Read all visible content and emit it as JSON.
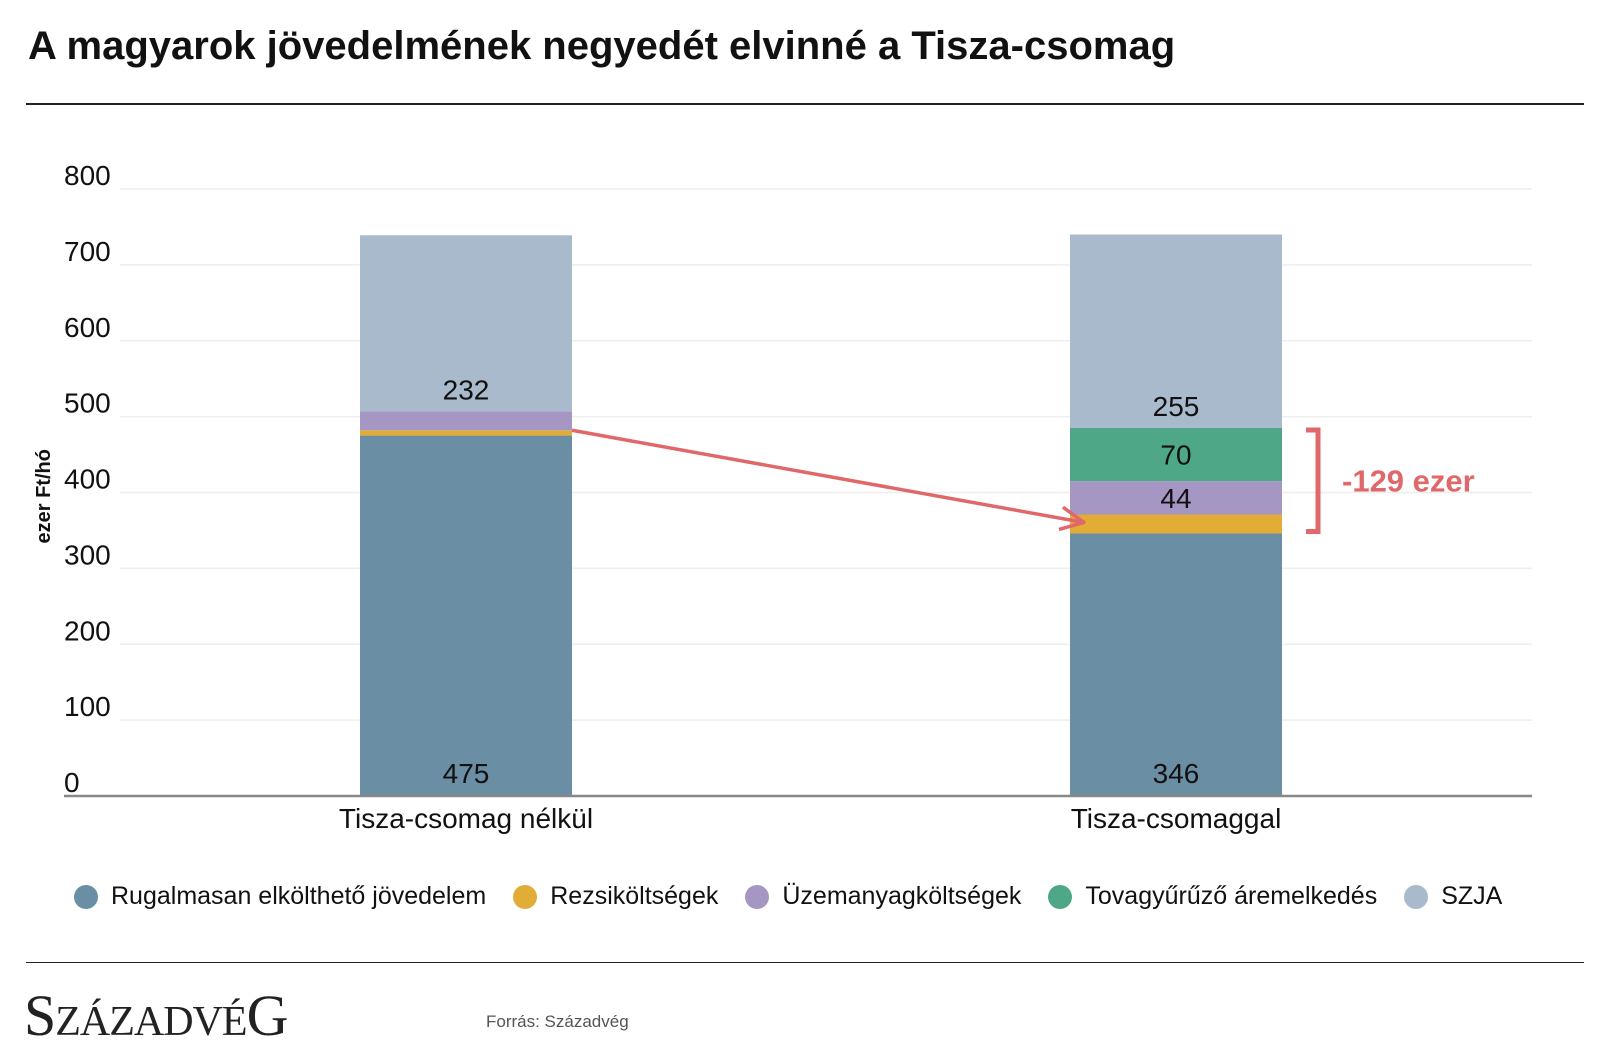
{
  "header": {
    "title": "A magyarok jövedelmének negyedét elvinné a Tisza-csomag"
  },
  "chart_data": {
    "type": "bar",
    "stacked": true,
    "categories": [
      "Tisza-csomag nélkül",
      "Tisza-csomaggal"
    ],
    "ylabel": "ezer Ft/hó",
    "ylim": [
      0,
      800
    ],
    "yticks": [
      0,
      100,
      200,
      300,
      400,
      500,
      600,
      700,
      800
    ],
    "grid": true,
    "series": [
      {
        "name": "Rugalmasan elkölthető jövedelem",
        "color": "#6a8fa4",
        "values": [
          475,
          346
        ],
        "labels": [
          "475",
          "346"
        ]
      },
      {
        "name": "Rezsiköltségek",
        "color": "#e2ad37",
        "values": [
          7,
          25
        ],
        "labels": [
          "",
          ""
        ]
      },
      {
        "name": "Üzemanyagköltségek",
        "color": "#a696c3",
        "values": [
          25,
          44
        ],
        "labels": [
          "",
          "44"
        ]
      },
      {
        "name": "Tovagyűrűző áremelkedés",
        "color": "#4ea887",
        "values": [
          0,
          70
        ],
        "labels": [
          "",
          "70"
        ]
      },
      {
        "name": "SZJA",
        "color": "#a8bacb",
        "values": [
          232,
          255
        ],
        "labels": [
          "232",
          "255"
        ]
      }
    ],
    "annotation": {
      "text": "-129 ezer",
      "color": "#e0676a"
    },
    "legend_position": "bottom"
  },
  "footer": {
    "logo": "Századvég",
    "source": "Forrás: Századvég"
  }
}
